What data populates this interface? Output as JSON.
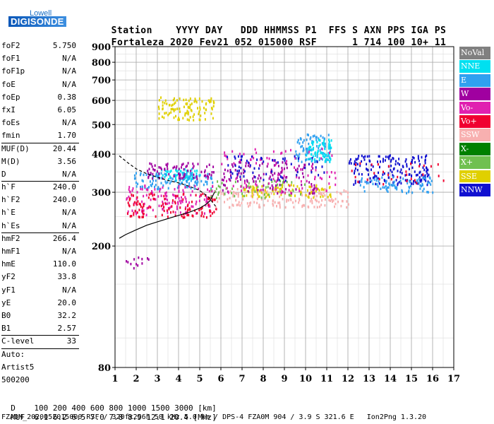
{
  "logo": {
    "line1": "Lowell",
    "line2": "DIGISONDE"
  },
  "header": {
    "labels": [
      "Station",
      "YYYY",
      "DAY",
      "DDD",
      "HHMMSS",
      "P1",
      "FFS",
      "S",
      "AXN",
      "PPS",
      "IGA",
      "PS"
    ],
    "values": [
      "Fortaleza",
      "2020",
      "Fev21",
      "052",
      "015000",
      "RSF",
      "1",
      "714",
      "100",
      "10+",
      "11"
    ]
  },
  "params": [
    {
      "k": "foF2",
      "v": "5.750"
    },
    {
      "k": "foF1",
      "v": "N/A"
    },
    {
      "k": "foF1p",
      "v": "N/A"
    },
    {
      "k": "foE",
      "v": "N/A"
    },
    {
      "k": "foEp",
      "v": "0.38"
    },
    {
      "k": "fxI",
      "v": "6.05"
    },
    {
      "k": "foEs",
      "v": "N/A"
    },
    {
      "k": "fmin",
      "v": "1.70"
    },
    {
      "k": "MUF(D)",
      "v": "20.44"
    },
    {
      "k": "M(D)",
      "v": "3.56"
    },
    {
      "k": "D",
      "v": "N/A"
    },
    {
      "k": "h`F",
      "v": "240.0"
    },
    {
      "k": "h`F2",
      "v": "240.0"
    },
    {
      "k": "h`E",
      "v": "N/A"
    },
    {
      "k": "h`Es",
      "v": "N/A"
    },
    {
      "k": "hmF2",
      "v": "266.4"
    },
    {
      "k": "hmF1",
      "v": "N/A"
    },
    {
      "k": "hmE",
      "v": "110.0"
    },
    {
      "k": "yF2",
      "v": "33.8"
    },
    {
      "k": "yF1",
      "v": "N/A"
    },
    {
      "k": "yE",
      "v": "20.0"
    },
    {
      "k": "B0",
      "v": "32.2"
    },
    {
      "k": "B1",
      "v": "2.57"
    },
    {
      "k": "C-level",
      "v": "33"
    },
    {
      "k": "Auto:",
      "v": ""
    },
    {
      "k": "Artist5",
      "v": ""
    },
    {
      "k": "500200",
      "v": ""
    }
  ],
  "legend": [
    {
      "name": "NoVal",
      "color": "#808080"
    },
    {
      "name": "NNE",
      "color": "#00e0f0"
    },
    {
      "name": "E",
      "color": "#30a0f0"
    },
    {
      "name": "W",
      "color": "#a000a0"
    },
    {
      "name": "Vo-",
      "color": "#e020b0"
    },
    {
      "name": "Vo+",
      "color": "#f00030"
    },
    {
      "name": "SSW",
      "color": "#f8b0b0"
    },
    {
      "name": "X-",
      "color": "#008000"
    },
    {
      "name": "X+",
      "color": "#70c050"
    },
    {
      "name": "SSE",
      "color": "#e0d000"
    },
    {
      "name": "NNW",
      "color": "#1010d0"
    }
  ],
  "footer": {
    "d_label": "D",
    "d_values": [
      "100",
      "200",
      "400",
      "600",
      "800",
      "1000",
      "1500",
      "3000"
    ],
    "d_unit": "[km]",
    "muf_label": "MUF",
    "muf_values": [
      "6.1",
      "6.2",
      "6.5",
      "7.0",
      "7.8",
      "8.9",
      "12.1",
      "20.4"
    ],
    "muf_unit": "[MHz]",
    "info": "FZA0M_2020052015000.RSF / 320fx256h 50 kHz 5.0 km / DPS-4 FZA0M 904 / 3.9 S 321.6 E   Ion2Png 1.3.20"
  },
  "chart_data": {
    "type": "scatter",
    "x_ticks": [
      1,
      2,
      3,
      4,
      5,
      6,
      7,
      8,
      9,
      10,
      11,
      12,
      13,
      14,
      15,
      16,
      17
    ],
    "y_ticks": [
      80,
      200,
      300,
      400,
      500,
      600,
      700,
      800,
      900
    ],
    "xlim": [
      1,
      17
    ],
    "ylim": [
      80,
      900
    ],
    "y_scale": "log",
    "grid": true,
    "legend_position": "right",
    "clusters": [
      {
        "series": "NNE",
        "x": [
          3.0,
          5.0
        ],
        "y": [
          330,
          360
        ],
        "n": 60
      },
      {
        "series": "E",
        "x": [
          1.8,
          5.6
        ],
        "y": [
          310,
          350
        ],
        "n": 120
      },
      {
        "series": "E",
        "x": [
          9.5,
          11.2
        ],
        "y": [
          380,
          470
        ],
        "n": 90
      },
      {
        "series": "NNE",
        "x": [
          10.0,
          11.2
        ],
        "y": [
          380,
          450
        ],
        "n": 70
      },
      {
        "series": "W",
        "x": [
          2.5,
          5.7
        ],
        "y": [
          335,
          380
        ],
        "n": 80
      },
      {
        "series": "Vo-",
        "x": [
          1.5,
          5.7
        ],
        "y": [
          255,
          320
        ],
        "n": 140
      },
      {
        "series": "Vo+",
        "x": [
          1.5,
          5.8
        ],
        "y": [
          250,
          300
        ],
        "n": 120
      },
      {
        "series": "SSW",
        "x": [
          5.7,
          12.0
        ],
        "y": [
          270,
          310
        ],
        "n": 160
      },
      {
        "series": "SSE",
        "x": [
          3.0,
          5.7
        ],
        "y": [
          520,
          620
        ],
        "n": 110
      },
      {
        "series": "SSE",
        "x": [
          7.0,
          11.2
        ],
        "y": [
          290,
          320
        ],
        "n": 90
      },
      {
        "series": "X+",
        "x": [
          5.5,
          10.0
        ],
        "y": [
          290,
          330
        ],
        "n": 50
      },
      {
        "series": "NNW",
        "x": [
          12.0,
          15.8
        ],
        "y": [
          320,
          400
        ],
        "n": 170
      },
      {
        "series": "E",
        "x": [
          12.5,
          16.0
        ],
        "y": [
          300,
          340
        ],
        "n": 80
      },
      {
        "series": "W",
        "x": [
          6.0,
          10.5
        ],
        "y": [
          300,
          380
        ],
        "n": 120
      },
      {
        "series": "Vo-",
        "x": [
          6.0,
          11.5
        ],
        "y": [
          300,
          420
        ],
        "n": 90
      },
      {
        "series": "NNW",
        "x": [
          6.0,
          11.0
        ],
        "y": [
          330,
          400
        ],
        "n": 60
      },
      {
        "series": "Vo+",
        "x": [
          12.0,
          16.5
        ],
        "y": [
          320,
          380
        ],
        "n": 30
      },
      {
        "series": "W",
        "x": [
          1.5,
          2.6
        ],
        "y": [
          170,
          185
        ],
        "n": 12
      }
    ],
    "curves": [
      {
        "name": "virtual-height-trace",
        "style": "solid",
        "points": [
          [
            1.2,
            212
          ],
          [
            1.5,
            218
          ],
          [
            2.0,
            226
          ],
          [
            2.5,
            234
          ],
          [
            3.0,
            240
          ],
          [
            3.5,
            246
          ],
          [
            4.0,
            252
          ],
          [
            4.5,
            258
          ],
          [
            5.0,
            266
          ],
          [
            5.3,
            274
          ],
          [
            5.5,
            282
          ],
          [
            5.7,
            300
          ]
        ]
      },
      {
        "name": "profile-upper",
        "style": "dashed",
        "points": [
          [
            1.2,
            395
          ],
          [
            1.6,
            375
          ],
          [
            2.0,
            358
          ],
          [
            2.5,
            345
          ],
          [
            3.0,
            336
          ],
          [
            3.5,
            328
          ],
          [
            4.0,
            322
          ],
          [
            4.5,
            314
          ],
          [
            5.0,
            304
          ],
          [
            5.4,
            290
          ],
          [
            5.75,
            270
          ]
        ]
      }
    ]
  }
}
